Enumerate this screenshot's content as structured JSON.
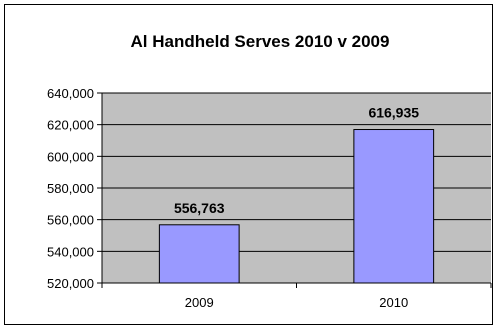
{
  "chart_data": {
    "type": "bar",
    "title": "Al Handheld Serves 2010 v 2009",
    "categories": [
      "2009",
      "2010"
    ],
    "values": [
      556763,
      616935
    ],
    "data_labels": [
      "556,763",
      "616,935"
    ],
    "ylim": [
      520000,
      640000
    ],
    "yticks": [
      520000,
      540000,
      560000,
      580000,
      600000,
      620000,
      640000
    ],
    "ytick_labels": [
      "520,000",
      "540,000",
      "560,000",
      "580,000",
      "600,000",
      "620,000",
      "640,000"
    ],
    "grid": true,
    "legend": "none",
    "colors": {
      "bar_fill": "#9999ff",
      "bar_stroke": "#000000",
      "plot_bg": "#c0c0c0",
      "grid": "#000000"
    }
  }
}
